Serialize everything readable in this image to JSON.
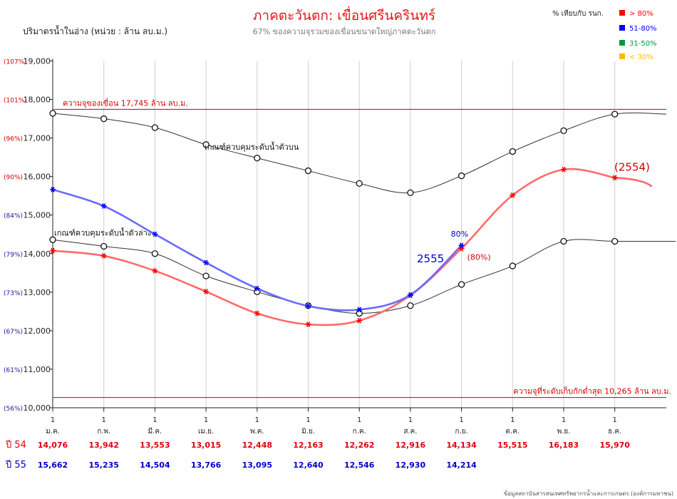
{
  "chart_data": {
    "type": "line",
    "title": "ภาคตะวันตก: เขื่อนศรีนครินทร์",
    "subtitle": "67%  ของความจุรวมของเขื่อนขนาดใหญ่ภาคตะวันตก",
    "ylabel": "ปริมาตรน้ำในอ่าง (หน่วย : ล้าน ลบ.ม.)",
    "ylim": [
      10000,
      19000
    ],
    "yticks": [
      "10,000",
      "11,000",
      "12,000",
      "13,000",
      "14,000",
      "15,000",
      "16,000",
      "17,000",
      "18,000",
      "19,000"
    ],
    "ypct": [
      "(56%)",
      "(61%)",
      "(67%)",
      "(73%)",
      "(79%)",
      "(84%)",
      "(90%)",
      "(96%)",
      "(101%)",
      "(107%)"
    ],
    "xday": "1",
    "months": [
      "ม.ค.",
      "ก.พ.",
      "มี.ค.",
      "เม.ย.",
      "พ.ค.",
      "มิ.ย.",
      "ก.ค.",
      "ส.ค.",
      "ก.ย.",
      "ต.ค.",
      "พ.ย.",
      "ธ.ค."
    ],
    "legend": {
      "title": "% เทียบกับ รนก.",
      "items": [
        {
          "label": "> 80%",
          "color": "#ff0000"
        },
        {
          "label": "51-80%",
          "color": "#0000ff"
        },
        {
          "label": "31-50%",
          "color": "#009933"
        },
        {
          "label": "< 30%",
          "color": "#ffbb00"
        }
      ]
    },
    "capacity": {
      "value": 17745,
      "label": "ความจุของเขื่อน  17,745  ล้าน  ลบ.ม."
    },
    "minimum": {
      "value": 10265,
      "label": "ความจุที่ระดับเก็บกักต่ำสุด  10,265  ล้าน  ลบ.ม."
    },
    "upper_rule": {
      "label": "เกณฑ์ควบคุมระดับน้ำตัวบน",
      "values": [
        17640,
        17500,
        17270,
        16830,
        16480,
        16150,
        15820,
        15580,
        16020,
        16650,
        17190,
        17620
      ]
    },
    "lower_rule": {
      "label": "เกณฑ์ควบคุมระดับน้ำตัวล่าง",
      "values": [
        14360,
        14190,
        14000,
        13420,
        13010,
        12650,
        12450,
        12650,
        13200,
        13680,
        14320,
        14320
      ]
    },
    "series": [
      {
        "name": "ปี 54",
        "color": "#ff0000",
        "values": [
          14076,
          13942,
          13553,
          13015,
          12448,
          12163,
          12262,
          12916,
          14134,
          15515,
          16183,
          15970
        ],
        "display": [
          "14,076",
          "13,942",
          "13,553",
          "13,015",
          "12,448",
          "12,163",
          "12,262",
          "12,916",
          "14,134",
          "15,515",
          "16,183",
          "15,970"
        ],
        "label": "(2554)"
      },
      {
        "name": "ปี 55",
        "color": "#0000ff",
        "values": [
          15662,
          15235,
          14504,
          13766,
          13095,
          12640,
          12546,
          12930,
          14214
        ],
        "display": [
          "15,662",
          "15,235",
          "14,504",
          "13,766",
          "13,095",
          "12,640",
          "12,546",
          "12,930",
          "14,214"
        ],
        "label": "2555",
        "pct_label": "80%",
        "pct_label_54": "(80%)"
      }
    ]
  },
  "source": "ข้อมูลสถาบันสารสนเทศทรัพยากรน้ำและการเกษตร (องค์การมหาชน)"
}
